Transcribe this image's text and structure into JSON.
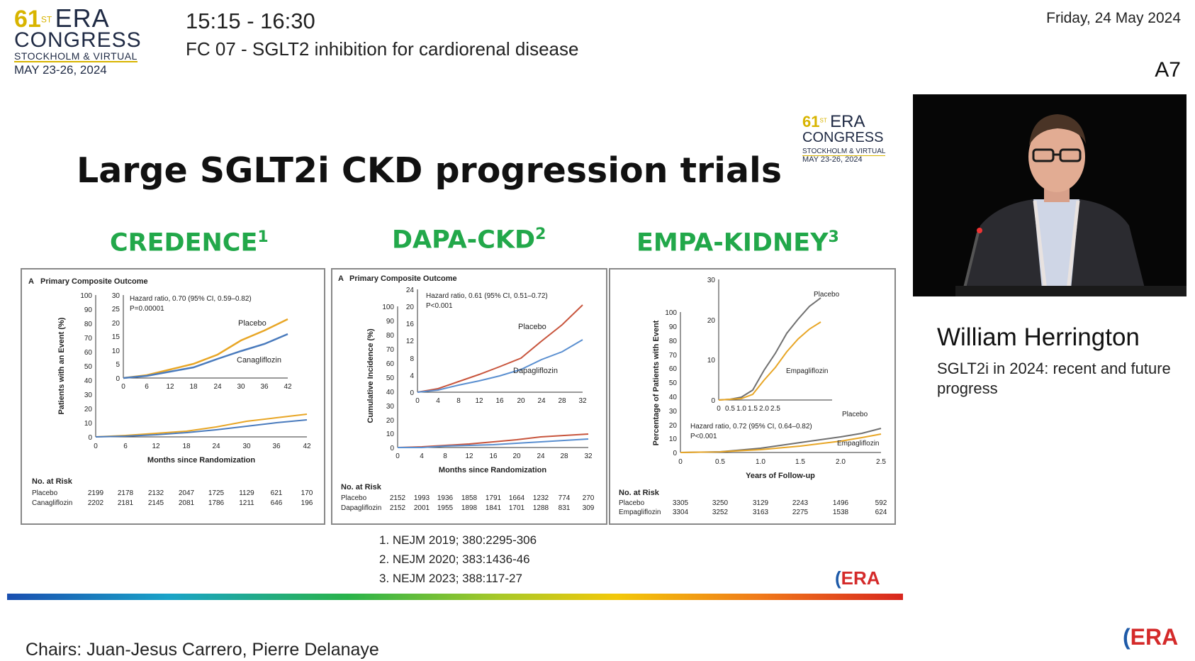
{
  "header": {
    "logo": {
      "num": "61",
      "sup": "ST",
      "era": "ERA",
      "congress": "CONGRESS",
      "sub": "STOCKHOLM & VIRTUAL",
      "dates": "MAY 23-26, 2024"
    },
    "time": "15:15 - 16:30",
    "session": "FC 07 - SGLT2 inhibition for cardiorenal disease",
    "date": "Friday, 24 May 2024",
    "room": "A7"
  },
  "slide": {
    "logo": {
      "num": "61",
      "sup": "ST",
      "era": "ERA",
      "congress": "CONGRESS",
      "sub": "STOCKHOLM & VIRTUAL",
      "dates": "MAY 23-26, 2024"
    },
    "title": "Large SGLT2i CKD progression trials",
    "trials": [
      {
        "name": "CREDENCE",
        "ref": "1"
      },
      {
        "name": "DAPA-CKD",
        "ref": "2"
      },
      {
        "name": "EMPA-KIDNEY",
        "ref": "3"
      }
    ],
    "references": [
      "1.  NEJM 2019; 380:2295-306",
      "2.  NEJM 2020; 383:1436-46",
      "3.  NEJM 2023; 388:117-27"
    ],
    "era_mark": "ERA"
  },
  "panels": {
    "credence": {
      "label": "A",
      "outcome": "Primary Composite Outcome",
      "hr": "Hazard ratio, 0.70 (95% CI, 0.59–0.82)",
      "p": "P=0.00001",
      "ylabel": "Patients with an Event (%)",
      "xlabel": "Months since Randomization",
      "series1": "Placebo",
      "series2": "Canagliflozin",
      "risk_title": "No. at Risk",
      "risk": [
        {
          "group": "Placebo",
          "values": [
            "2199",
            "2178",
            "2132",
            "2047",
            "1725",
            "1129",
            "621",
            "170"
          ]
        },
        {
          "group": "Canagliflozin",
          "values": [
            "2202",
            "2181",
            "2145",
            "2081",
            "1786",
            "1211",
            "646",
            "196"
          ]
        }
      ]
    },
    "dapa": {
      "label": "A",
      "outcome": "Primary Composite Outcome",
      "hr": "Hazard ratio, 0.61 (95% CI, 0.51–0.72)",
      "p": "P<0.001",
      "ylabel": "Cumulative Incidence (%)",
      "xlabel": "Months since Randomization",
      "series1": "Placebo",
      "series2": "Dapagliflozin",
      "risk_title": "No. at Risk",
      "risk": [
        {
          "group": "Placebo",
          "values": [
            "2152",
            "1993",
            "1936",
            "1858",
            "1791",
            "1664",
            "1232",
            "774",
            "270"
          ]
        },
        {
          "group": "Dapagliflozin",
          "values": [
            "2152",
            "2001",
            "1955",
            "1898",
            "1841",
            "1701",
            "1288",
            "831",
            "309"
          ]
        }
      ]
    },
    "empa": {
      "hr": "Hazard ratio, 0.72 (95% CI, 0.64–0.82)",
      "p": "P<0.001",
      "ylabel": "Percentage of Patients with Event",
      "xlabel": "Years of Follow-up",
      "series1": "Placebo",
      "series2": "Empagliflozin",
      "risk_title": "No. at Risk",
      "risk": [
        {
          "group": "Placebo",
          "values": [
            "3305",
            "3250",
            "3129",
            "2243",
            "1496",
            "592"
          ]
        },
        {
          "group": "Empagliflozin",
          "values": [
            "3304",
            "3252",
            "3163",
            "2275",
            "1538",
            "624"
          ]
        }
      ]
    }
  },
  "colors": {
    "placebo_credence": "#e8a626",
    "active_credence": "#4a7bbd",
    "placebo_dapa": "#c8553d",
    "active_dapa": "#5a8fd0",
    "placebo_empa": "#707070",
    "active_empa": "#e8a626"
  },
  "speaker": {
    "name": "William Herrington",
    "talk": "SGLT2i in 2024: recent and future progress"
  },
  "footer": {
    "chairs": "Chairs: Juan-Jesus Carrero, Pierre Delanaye"
  }
}
